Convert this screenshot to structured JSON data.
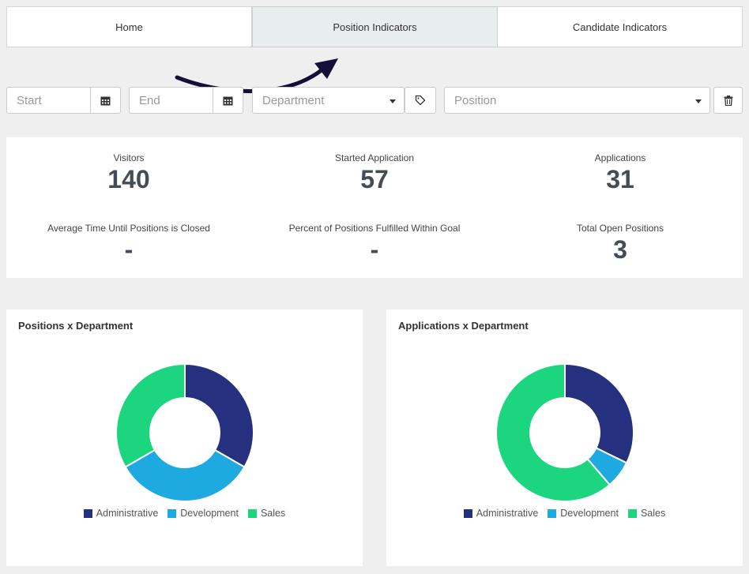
{
  "tabs": [
    {
      "label": "Home",
      "active": false
    },
    {
      "label": "Position Indicators",
      "active": true
    },
    {
      "label": "Candidate Indicators",
      "active": false
    }
  ],
  "filters": {
    "start_placeholder": "Start",
    "end_placeholder": "End",
    "department_placeholder": "Department",
    "position_placeholder": "Position",
    "icons": {
      "calendar": "calendar-icon",
      "tag": "tag-icon",
      "trash": "trash-icon",
      "caret": "caret-down-icon"
    }
  },
  "stats": [
    {
      "label": "Visitors",
      "value": "140"
    },
    {
      "label": "Started Application",
      "value": "57"
    },
    {
      "label": "Applications",
      "value": "31"
    },
    {
      "label": "Average Time Until Positions is Closed",
      "value": "-"
    },
    {
      "label": "Percent of Positions Fulfilled Within Goal",
      "value": "-"
    },
    {
      "label": "Total Open Positions",
      "value": "3"
    }
  ],
  "colors": {
    "administrative": "#25317f",
    "development": "#1fa9e1",
    "sales": "#1bd67f",
    "arrow": "#140f38"
  },
  "chart_data": [
    {
      "type": "pie",
      "title": "Positions x Department",
      "donut": true,
      "legend": "bottom",
      "categories": [
        "Administrative",
        "Development",
        "Sales"
      ],
      "values": [
        1,
        1,
        1
      ]
    },
    {
      "type": "pie",
      "title": "Applications x Department",
      "donut": true,
      "legend": "bottom",
      "categories": [
        "Administrative",
        "Development",
        "Sales"
      ],
      "values": [
        10,
        2,
        19
      ]
    }
  ]
}
